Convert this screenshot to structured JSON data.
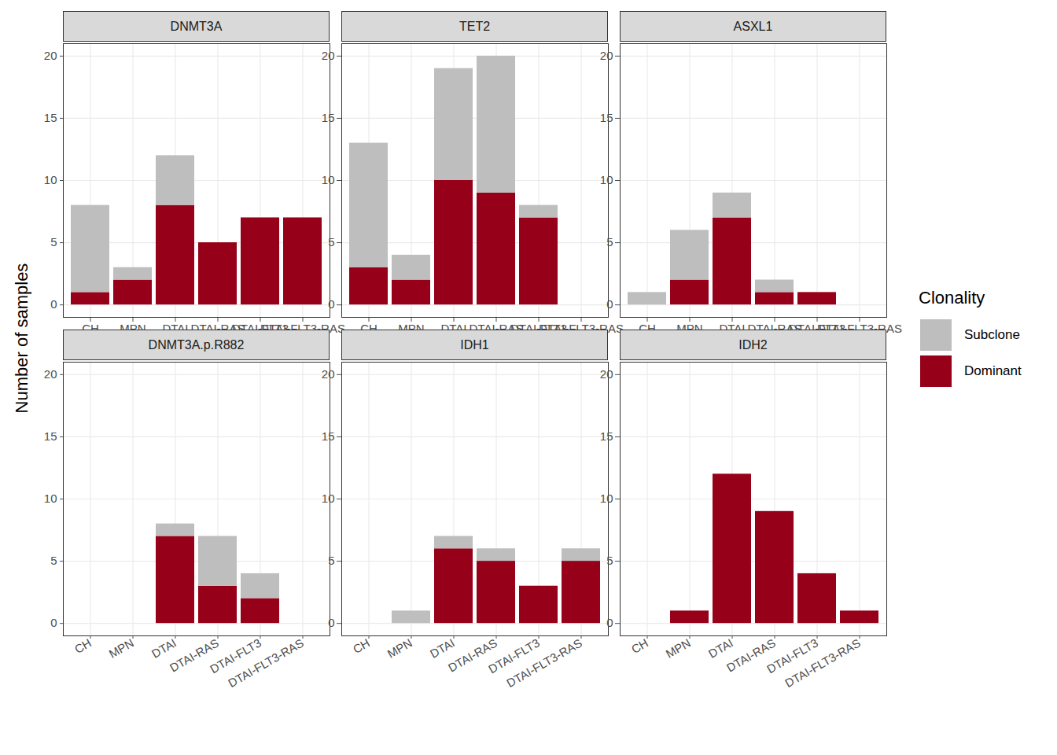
{
  "ylabel": "Number of samples",
  "legend_title": "Clonality",
  "chart_data": [
    {
      "type": "bar",
      "title": "DNMT3A",
      "stacked": true,
      "grid": true,
      "categories": [
        "CH",
        "MPN",
        "DTAI",
        "DTAI-RAS",
        "DTAI-FLT3",
        "DTAI-FLT3-RAS"
      ],
      "series": [
        {
          "name": "Subclone",
          "color": "#BEBEBE",
          "values": [
            7,
            1,
            4,
            0,
            0,
            0
          ]
        },
        {
          "name": "Dominant",
          "color": "#960018",
          "values": [
            1,
            2,
            8,
            5,
            7,
            7
          ]
        }
      ],
      "ylim": [
        -1,
        21
      ],
      "yticks": [
        0,
        5,
        10,
        15,
        20
      ]
    },
    {
      "type": "bar",
      "title": "TET2",
      "stacked": true,
      "grid": true,
      "categories": [
        "CH",
        "MPN",
        "DTAI",
        "DTAI-RAS",
        "DTAI-FLT3",
        "DTAI-FLT3-RAS"
      ],
      "series": [
        {
          "name": "Subclone",
          "color": "#BEBEBE",
          "values": [
            10,
            2,
            9,
            11,
            1,
            0
          ]
        },
        {
          "name": "Dominant",
          "color": "#960018",
          "values": [
            3,
            2,
            10,
            9,
            7,
            0
          ]
        }
      ],
      "ylim": [
        -1,
        21
      ],
      "yticks": [
        0,
        5,
        10,
        15,
        20
      ]
    },
    {
      "type": "bar",
      "title": "ASXL1",
      "stacked": true,
      "grid": true,
      "categories": [
        "CH",
        "MPN",
        "DTAI",
        "DTAI-RAS",
        "DTAI-FLT3",
        "DTAI-FLT3-RAS"
      ],
      "series": [
        {
          "name": "Subclone",
          "color": "#BEBEBE",
          "values": [
            1,
            4,
            2,
            1,
            0,
            0
          ]
        },
        {
          "name": "Dominant",
          "color": "#960018",
          "values": [
            0,
            2,
            7,
            1,
            1,
            0
          ]
        }
      ],
      "ylim": [
        -1,
        21
      ],
      "yticks": [
        0,
        5,
        10,
        15,
        20
      ]
    },
    {
      "type": "bar",
      "title": "DNMT3A.p.R882",
      "stacked": true,
      "grid": true,
      "categories": [
        "CH",
        "MPN",
        "DTAI",
        "DTAI-RAS",
        "DTAI-FLT3",
        "DTAI-FLT3-RAS"
      ],
      "series": [
        {
          "name": "Subclone",
          "color": "#BEBEBE",
          "values": [
            0,
            0,
            1,
            4,
            2,
            0
          ]
        },
        {
          "name": "Dominant",
          "color": "#960018",
          "values": [
            0,
            0,
            7,
            3,
            2,
            0
          ]
        }
      ],
      "ylim": [
        -1,
        21
      ],
      "yticks": [
        0,
        5,
        10,
        15,
        20
      ]
    },
    {
      "type": "bar",
      "title": "IDH1",
      "stacked": true,
      "grid": true,
      "categories": [
        "CH",
        "MPN",
        "DTAI",
        "DTAI-RAS",
        "DTAI-FLT3",
        "DTAI-FLT3-RAS"
      ],
      "series": [
        {
          "name": "Subclone",
          "color": "#BEBEBE",
          "values": [
            0,
            1,
            1,
            1,
            0,
            1
          ]
        },
        {
          "name": "Dominant",
          "color": "#960018",
          "values": [
            0,
            0,
            6,
            5,
            3,
            5
          ]
        }
      ],
      "ylim": [
        -1,
        21
      ],
      "yticks": [
        0,
        5,
        10,
        15,
        20
      ]
    },
    {
      "type": "bar",
      "title": "IDH2",
      "stacked": true,
      "grid": true,
      "categories": [
        "CH",
        "MPN",
        "DTAI",
        "DTAI-RAS",
        "DTAI-FLT3",
        "DTAI-FLT3-RAS"
      ],
      "series": [
        {
          "name": "Subclone",
          "color": "#BEBEBE",
          "values": [
            0,
            0,
            0,
            0,
            0,
            0
          ]
        },
        {
          "name": "Dominant",
          "color": "#960018",
          "values": [
            0,
            1,
            12,
            9,
            4,
            1
          ]
        }
      ],
      "ylim": [
        -1,
        21
      ],
      "yticks": [
        0,
        5,
        10,
        15,
        20
      ]
    }
  ]
}
